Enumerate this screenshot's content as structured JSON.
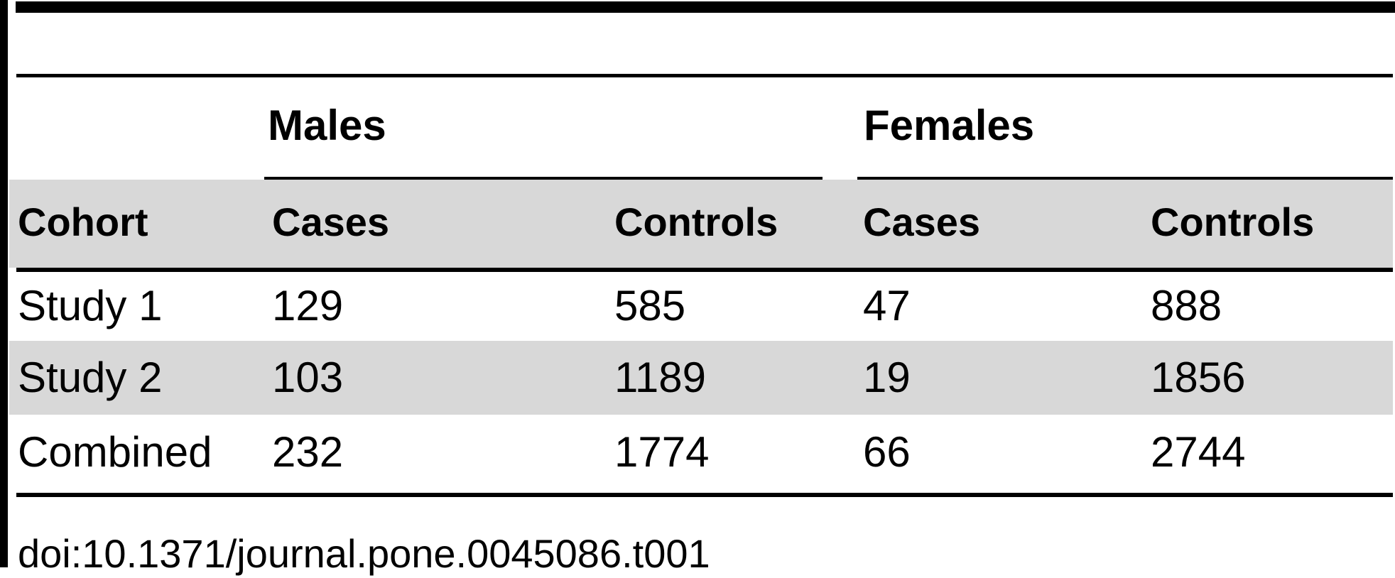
{
  "table": {
    "group_headers": [
      {
        "label": "Males"
      },
      {
        "label": "Females"
      }
    ],
    "columns": [
      {
        "label": "Cohort"
      },
      {
        "label": "Cases"
      },
      {
        "label": "Controls"
      },
      {
        "label": "Cases"
      },
      {
        "label": "Controls"
      }
    ],
    "rows": [
      {
        "cohort": "Study 1",
        "males_cases": "129",
        "males_controls": "585",
        "females_cases": "47",
        "females_controls": "888"
      },
      {
        "cohort": "Study 2",
        "males_cases": "103",
        "males_controls": "1189",
        "females_cases": "19",
        "females_controls": "1856"
      },
      {
        "cohort": "Combined",
        "males_cases": "232",
        "males_controls": "1774",
        "females_cases": "66",
        "females_controls": "2744"
      }
    ],
    "footer": {
      "doi": "doi:10.1371/journal.pone.0045086.t001"
    }
  },
  "colors": {
    "row_stripe": "#d8d8d8",
    "rule": "#000000",
    "background": "#ffffff",
    "text": "#000000"
  }
}
